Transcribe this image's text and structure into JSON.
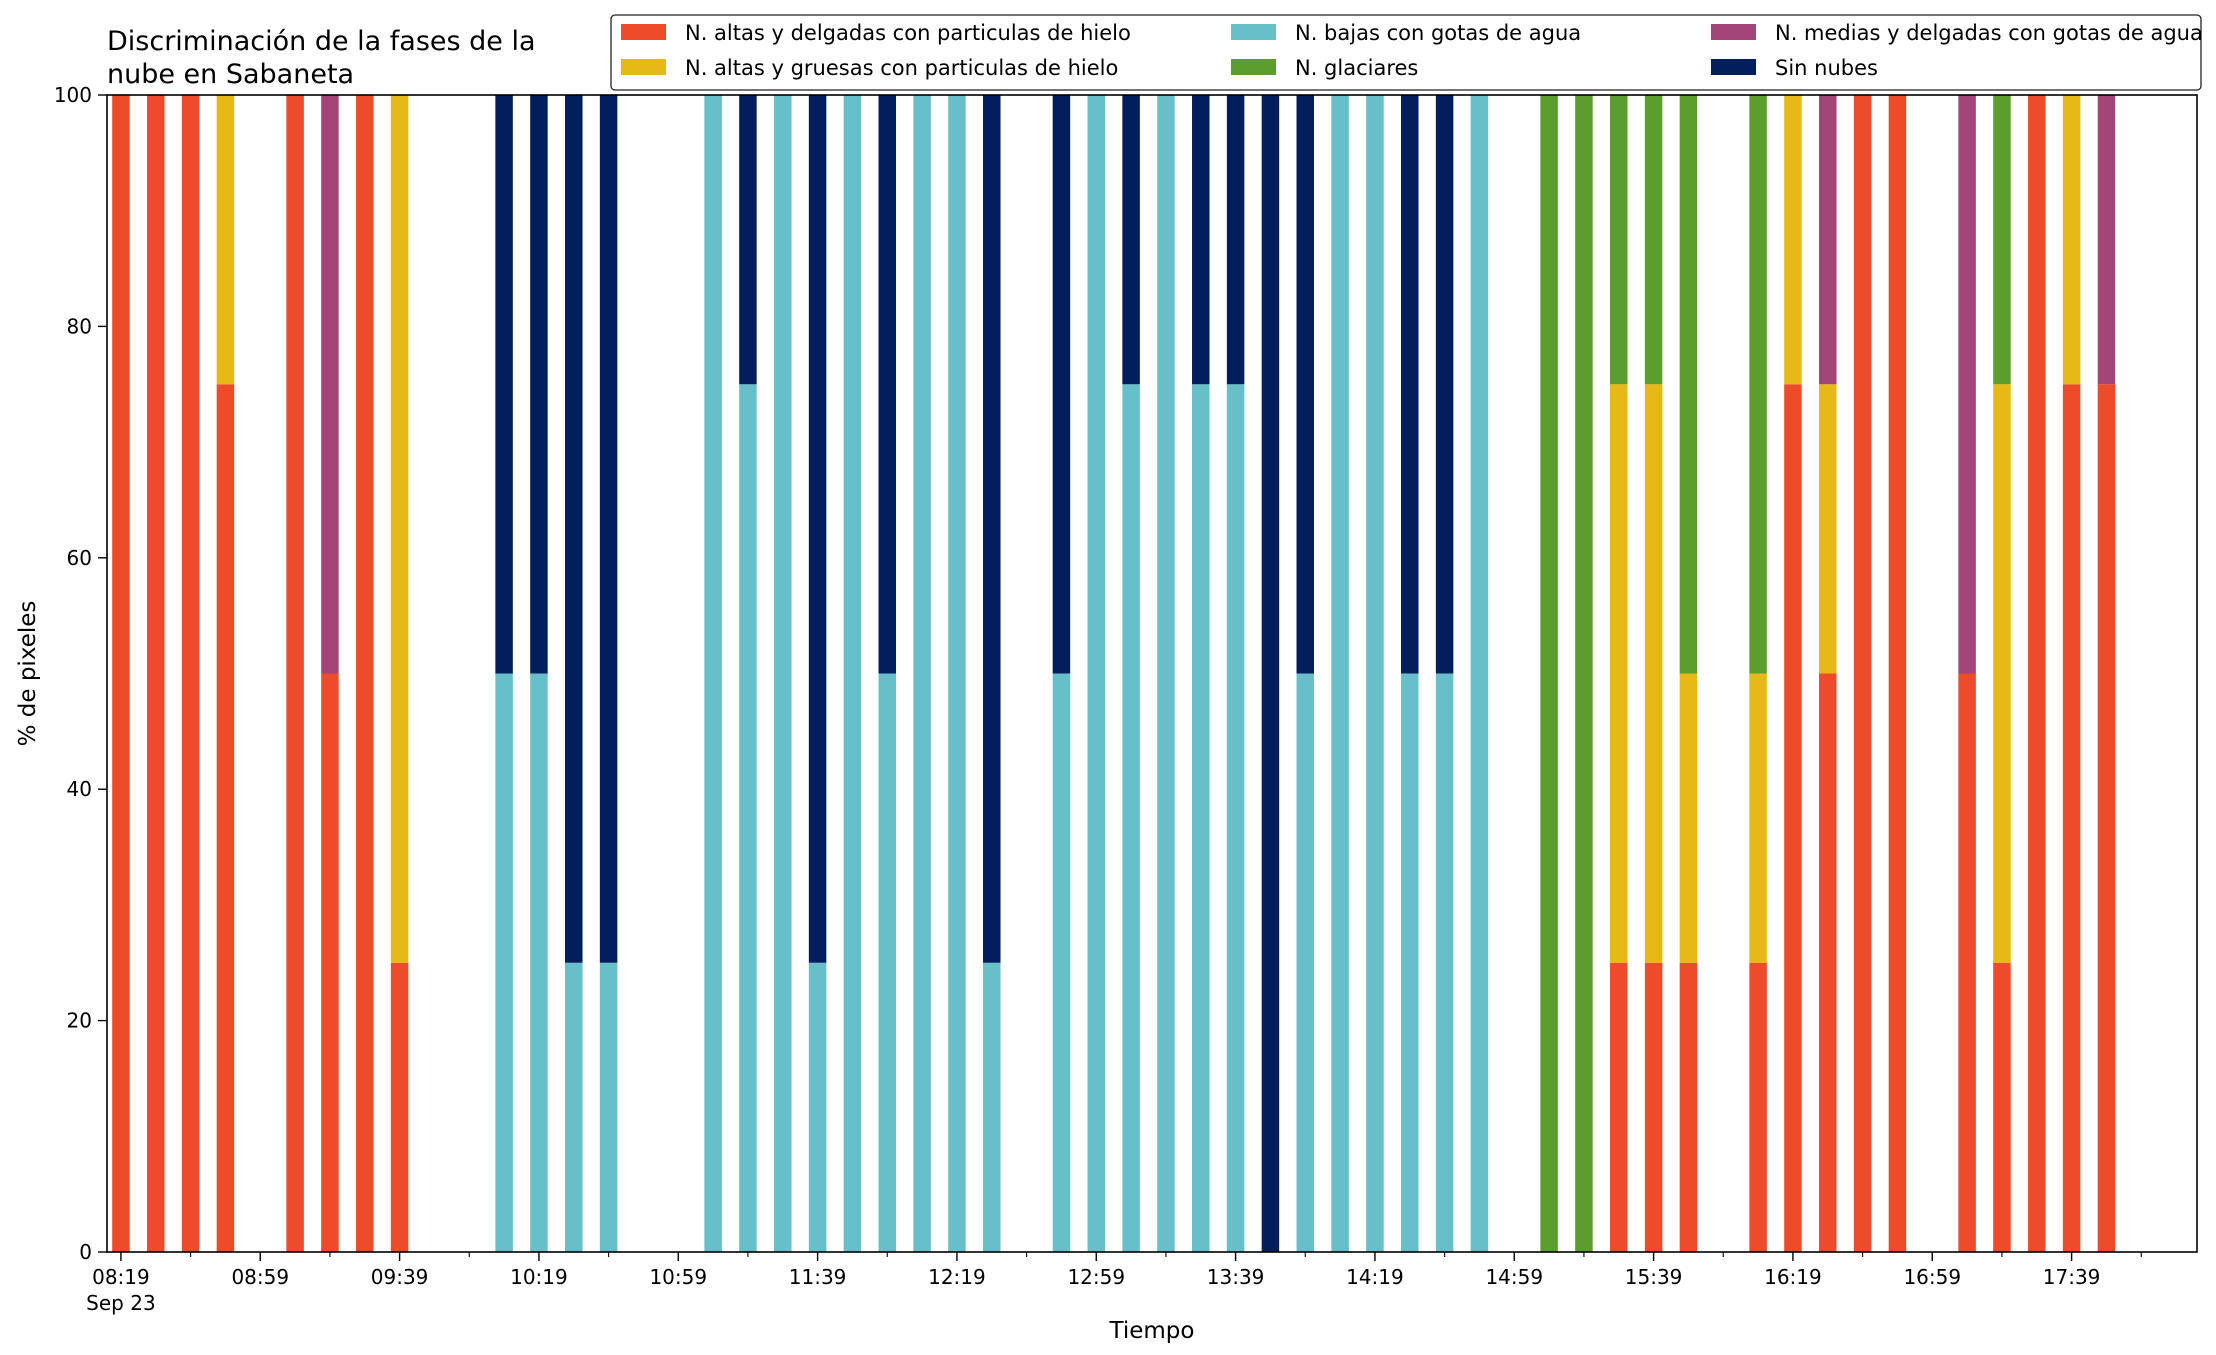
{
  "chart_data": {
    "type": "bar",
    "stacked": true,
    "title": "Discriminación de la fases de la\nnube en Sabaneta",
    "xlabel": "Tiempo",
    "ylabel": "% de pixeles",
    "ylim": [
      0,
      100
    ],
    "xlim": [
      "08:15",
      "18:15"
    ],
    "yticks": [
      0,
      20,
      40,
      60,
      80,
      100
    ],
    "xticks": [
      {
        "time": "08:19",
        "label": "08:19",
        "sublabel": "Sep 23"
      },
      {
        "time": "08:59",
        "label": "08:59"
      },
      {
        "time": "09:39",
        "label": "09:39"
      },
      {
        "time": "10:19",
        "label": "10:19"
      },
      {
        "time": "10:59",
        "label": "10:59"
      },
      {
        "time": "11:39",
        "label": "11:39"
      },
      {
        "time": "12:19",
        "label": "12:19"
      },
      {
        "time": "12:59",
        "label": "12:59"
      },
      {
        "time": "13:39",
        "label": "13:39"
      },
      {
        "time": "14:19",
        "label": "14:19"
      },
      {
        "time": "14:59",
        "label": "14:59"
      },
      {
        "time": "15:39",
        "label": "15:39"
      },
      {
        "time": "16:19",
        "label": "16:19"
      },
      {
        "time": "16:59",
        "label": "16:59"
      },
      {
        "time": "17:39",
        "label": "17:39"
      }
    ],
    "legend_position": "top-right",
    "grid": false,
    "series": [
      {
        "name": "N. altas y delgadas con particulas de hielo",
        "color": "#ee4b2b"
      },
      {
        "name": "N. altas y gruesas con particulas de hielo",
        "color": "#e6b917"
      },
      {
        "name": "N. bajas con gotas de agua",
        "color": "#66bfc9"
      },
      {
        "name": "N. glaciares",
        "color": "#5c9e2d"
      },
      {
        "name": "N. medias y delgadas con gotas de agua",
        "color": "#a4457a"
      },
      {
        "name": "Sin nubes",
        "color": "#021e5c"
      }
    ],
    "bars": [
      {
        "time": "08:19",
        "values": [
          100,
          0,
          0,
          0,
          0,
          0
        ]
      },
      {
        "time": "08:29",
        "values": [
          100,
          0,
          0,
          0,
          0,
          0
        ]
      },
      {
        "time": "08:39",
        "values": [
          100,
          0,
          0,
          0,
          0,
          0
        ]
      },
      {
        "time": "08:49",
        "values": [
          75,
          25,
          0,
          0,
          0,
          0
        ]
      },
      {
        "time": "09:09",
        "values": [
          100,
          0,
          0,
          0,
          0,
          0
        ]
      },
      {
        "time": "09:19",
        "values": [
          50,
          0,
          0,
          0,
          50,
          0
        ]
      },
      {
        "time": "09:29",
        "values": [
          100,
          0,
          0,
          0,
          0,
          0
        ]
      },
      {
        "time": "09:39",
        "values": [
          25,
          75,
          0,
          0,
          0,
          0
        ]
      },
      {
        "time": "10:09",
        "values": [
          0,
          0,
          50,
          0,
          0,
          50
        ]
      },
      {
        "time": "10:19",
        "values": [
          0,
          0,
          50,
          0,
          0,
          50
        ]
      },
      {
        "time": "10:29",
        "values": [
          0,
          0,
          25,
          0,
          0,
          75
        ]
      },
      {
        "time": "10:39",
        "values": [
          0,
          0,
          25,
          0,
          0,
          75
        ]
      },
      {
        "time": "11:09",
        "values": [
          0,
          0,
          100,
          0,
          0,
          0
        ]
      },
      {
        "time": "11:19",
        "values": [
          0,
          0,
          75,
          0,
          0,
          25
        ]
      },
      {
        "time": "11:29",
        "values": [
          0,
          0,
          100,
          0,
          0,
          0
        ]
      },
      {
        "time": "11:39",
        "values": [
          0,
          0,
          25,
          0,
          0,
          75
        ]
      },
      {
        "time": "11:49",
        "values": [
          0,
          0,
          100,
          0,
          0,
          0
        ]
      },
      {
        "time": "11:59",
        "values": [
          0,
          0,
          50,
          0,
          0,
          50
        ]
      },
      {
        "time": "12:09",
        "values": [
          0,
          0,
          100,
          0,
          0,
          0
        ]
      },
      {
        "time": "12:19",
        "values": [
          0,
          0,
          100,
          0,
          0,
          0
        ]
      },
      {
        "time": "12:29",
        "values": [
          0,
          0,
          25,
          0,
          0,
          75
        ]
      },
      {
        "time": "12:49",
        "values": [
          0,
          0,
          50,
          0,
          0,
          50
        ]
      },
      {
        "time": "12:59",
        "values": [
          0,
          0,
          100,
          0,
          0,
          0
        ]
      },
      {
        "time": "13:09",
        "values": [
          0,
          0,
          75,
          0,
          0,
          25
        ]
      },
      {
        "time": "13:19",
        "values": [
          0,
          0,
          100,
          0,
          0,
          0
        ]
      },
      {
        "time": "13:29",
        "values": [
          0,
          0,
          75,
          0,
          0,
          25
        ]
      },
      {
        "time": "13:39",
        "values": [
          0,
          0,
          75,
          0,
          0,
          25
        ]
      },
      {
        "time": "13:49",
        "values": [
          0,
          0,
          0,
          0,
          0,
          100
        ]
      },
      {
        "time": "13:59",
        "values": [
          0,
          0,
          50,
          0,
          0,
          50
        ]
      },
      {
        "time": "14:09",
        "values": [
          0,
          0,
          100,
          0,
          0,
          0
        ]
      },
      {
        "time": "14:19",
        "values": [
          0,
          0,
          100,
          0,
          0,
          0
        ]
      },
      {
        "time": "14:29",
        "values": [
          0,
          0,
          50,
          0,
          0,
          50
        ]
      },
      {
        "time": "14:39",
        "values": [
          0,
          0,
          50,
          0,
          0,
          50
        ]
      },
      {
        "time": "14:49",
        "values": [
          0,
          0,
          100,
          0,
          0,
          0
        ]
      },
      {
        "time": "15:09",
        "values": [
          0,
          0,
          0,
          100,
          0,
          0
        ]
      },
      {
        "time": "15:19",
        "values": [
          0,
          0,
          0,
          100,
          0,
          0
        ]
      },
      {
        "time": "15:29",
        "values": [
          25,
          50,
          0,
          25,
          0,
          0
        ]
      },
      {
        "time": "15:39",
        "values": [
          25,
          50,
          0,
          25,
          0,
          0
        ]
      },
      {
        "time": "15:49",
        "values": [
          25,
          25,
          0,
          50,
          0,
          0
        ]
      },
      {
        "time": "16:09",
        "values": [
          25,
          25,
          0,
          50,
          0,
          0
        ]
      },
      {
        "time": "16:19",
        "values": [
          75,
          25,
          0,
          0,
          0,
          0
        ]
      },
      {
        "time": "16:29",
        "values": [
          50,
          25,
          0,
          0,
          25,
          0
        ]
      },
      {
        "time": "16:39",
        "values": [
          100,
          0,
          0,
          0,
          0,
          0
        ]
      },
      {
        "time": "16:49",
        "values": [
          100,
          0,
          0,
          0,
          0,
          0
        ]
      },
      {
        "time": "17:09",
        "values": [
          50,
          0,
          0,
          0,
          50,
          0
        ]
      },
      {
        "time": "17:19",
        "values": [
          25,
          50,
          0,
          25,
          0,
          0
        ]
      },
      {
        "time": "17:29",
        "values": [
          100,
          0,
          0,
          0,
          0,
          0
        ]
      },
      {
        "time": "17:39",
        "values": [
          75,
          25,
          0,
          0,
          0,
          0
        ]
      },
      {
        "time": "17:49",
        "values": [
          75,
          0,
          0,
          0,
          25,
          0
        ]
      }
    ]
  }
}
